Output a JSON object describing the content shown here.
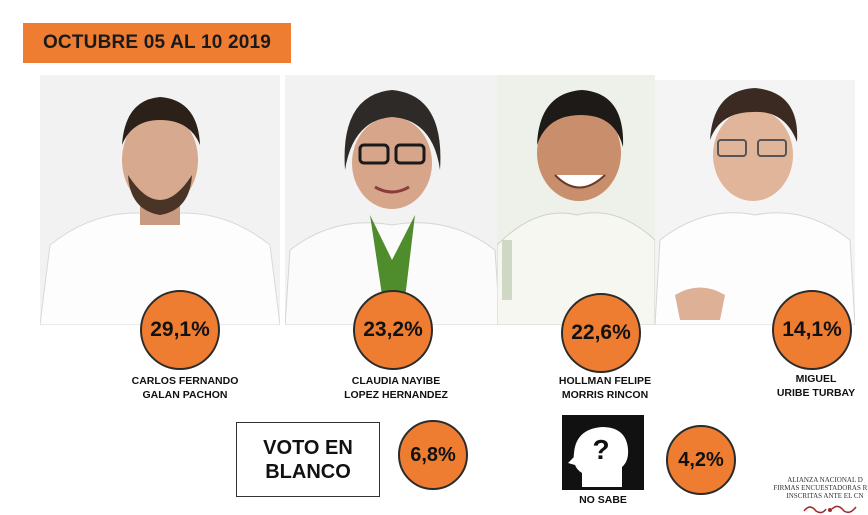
{
  "header": {
    "date_range": "OCTUBRE 05 AL 10 2019"
  },
  "candidates": [
    {
      "percent": "29,1%",
      "name_line1": "CARLOS FERNANDO",
      "name_line2": "GALAN PACHON"
    },
    {
      "percent": "23,2%",
      "name_line1": "CLAUDIA NAYIBE",
      "name_line2": "LOPEZ HERNANDEZ"
    },
    {
      "percent": "22,6%",
      "name_line1": "HOLLMAN FELIPE",
      "name_line2": "MORRIS RINCON"
    },
    {
      "percent": "14,1%",
      "name_line1": "MIGUEL",
      "name_line2": "URIBE TURBAY"
    }
  ],
  "blank_vote": {
    "label": "VOTO EN\nBLANCO",
    "percent": "6,8%"
  },
  "no_sabe": {
    "label": "NO SABE",
    "percent": "4,2%",
    "icon": "question-head-icon"
  },
  "footer": {
    "line1": "ALIANZA NACIONAL D",
    "line2": "FIRMAS ENCUESTADORAS REG",
    "line3": "INSCRITAS ANTE EL CN"
  },
  "colors": {
    "accent": "#ee7d31",
    "text": "#111111"
  }
}
